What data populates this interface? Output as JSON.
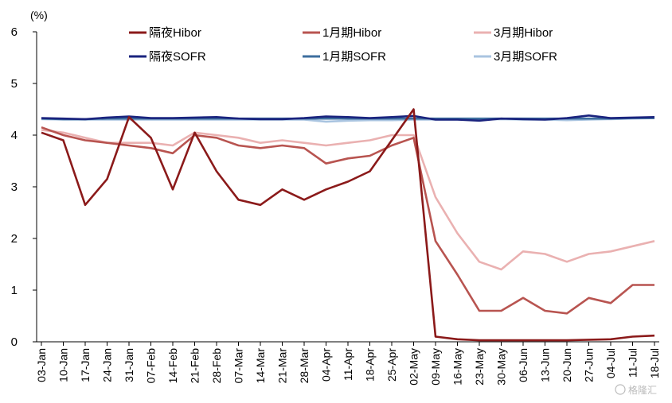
{
  "chart_data": {
    "type": "line",
    "unit_label": "(%)",
    "ylim": [
      0,
      6
    ],
    "yticks": [
      0,
      1,
      2,
      3,
      4,
      5,
      6
    ],
    "x_tick_labels": [
      "03-Jan",
      "10-Jan",
      "17-Jan",
      "24-Jan",
      "31-Jan",
      "07-Feb",
      "14-Feb",
      "21-Feb",
      "28-Feb",
      "07-Mar",
      "14-Mar",
      "21-Mar",
      "28-Mar",
      "04-Apr",
      "11-Apr",
      "18-Apr",
      "25-Apr",
      "02-May",
      "09-May",
      "16-May",
      "23-May",
      "30-May",
      "06-Jun",
      "13-Jun",
      "20-Jun",
      "27-Jun",
      "04-Jul",
      "11-Jul",
      "18-Jul"
    ],
    "x": [
      "03-Jan",
      "10-Jan",
      "17-Jan",
      "24-Jan",
      "31-Jan",
      "07-Feb",
      "14-Feb",
      "21-Feb",
      "28-Feb",
      "07-Mar",
      "14-Mar",
      "21-Mar",
      "28-Mar",
      "04-Apr",
      "11-Apr",
      "18-Apr",
      "25-Apr",
      "02-May",
      "09-May",
      "16-May",
      "23-May",
      "30-May",
      "06-Jun",
      "13-Jun",
      "20-Jun",
      "27-Jun",
      "04-Jul",
      "11-Jul",
      "18-Jul"
    ],
    "series": [
      {
        "name": "隔夜Hibor",
        "color": "#8b1a1a",
        "values": [
          4.05,
          3.9,
          2.65,
          3.15,
          4.35,
          3.95,
          2.95,
          4.05,
          3.3,
          2.75,
          2.65,
          2.95,
          2.75,
          2.95,
          3.1,
          3.3,
          3.9,
          4.5,
          0.1,
          0.05,
          0.03,
          0.03,
          0.03,
          0.03,
          0.03,
          0.04,
          0.05,
          0.1,
          0.12
        ]
      },
      {
        "name": "1月期Hibor",
        "color": "#b85450",
        "values": [
          4.15,
          4.0,
          3.9,
          3.85,
          3.8,
          3.75,
          3.65,
          4.0,
          3.95,
          3.8,
          3.75,
          3.8,
          3.75,
          3.45,
          3.55,
          3.6,
          3.8,
          3.95,
          1.95,
          1.3,
          0.6,
          0.6,
          0.85,
          0.6,
          0.55,
          0.85,
          0.75,
          1.1,
          1.1
        ]
      },
      {
        "name": "3月期Hibor",
        "color": "#eab1b1",
        "values": [
          4.1,
          4.05,
          3.95,
          3.85,
          3.85,
          3.85,
          3.8,
          4.05,
          4.0,
          3.95,
          3.85,
          3.9,
          3.85,
          3.8,
          3.85,
          3.9,
          4.0,
          4.0,
          2.8,
          2.1,
          1.55,
          1.4,
          1.75,
          1.7,
          1.55,
          1.7,
          1.75,
          1.85,
          1.95
        ]
      },
      {
        "name": "隔夜SOFR",
        "color": "#1a237e",
        "values": [
          4.33,
          4.32,
          4.31,
          4.34,
          4.36,
          4.33,
          4.33,
          4.34,
          4.35,
          4.32,
          4.31,
          4.31,
          4.33,
          4.36,
          4.35,
          4.33,
          4.35,
          4.37,
          4.3,
          4.3,
          4.28,
          4.32,
          4.31,
          4.3,
          4.33,
          4.38,
          4.33,
          4.34,
          4.35
        ]
      },
      {
        "name": "1月期SOFR",
        "color": "#3d6e9e",
        "values": [
          4.32,
          4.31,
          4.31,
          4.32,
          4.32,
          4.32,
          4.32,
          4.32,
          4.32,
          4.32,
          4.32,
          4.32,
          4.32,
          4.32,
          4.32,
          4.32,
          4.32,
          4.32,
          4.32,
          4.32,
          4.32,
          4.32,
          4.32,
          4.32,
          4.32,
          4.32,
          4.32,
          4.33,
          4.33
        ]
      },
      {
        "name": "3月期SOFR",
        "color": "#a9c4e0",
        "values": [
          4.31,
          4.3,
          4.3,
          4.3,
          4.3,
          4.3,
          4.3,
          4.3,
          4.3,
          4.3,
          4.3,
          4.3,
          4.3,
          4.26,
          4.28,
          4.29,
          4.29,
          4.3,
          4.3,
          4.3,
          4.3,
          4.31,
          4.3,
          4.3,
          4.29,
          4.3,
          4.31,
          4.32,
          4.33
        ]
      }
    ],
    "legend_placement": "top"
  },
  "watermark": "格隆汇"
}
